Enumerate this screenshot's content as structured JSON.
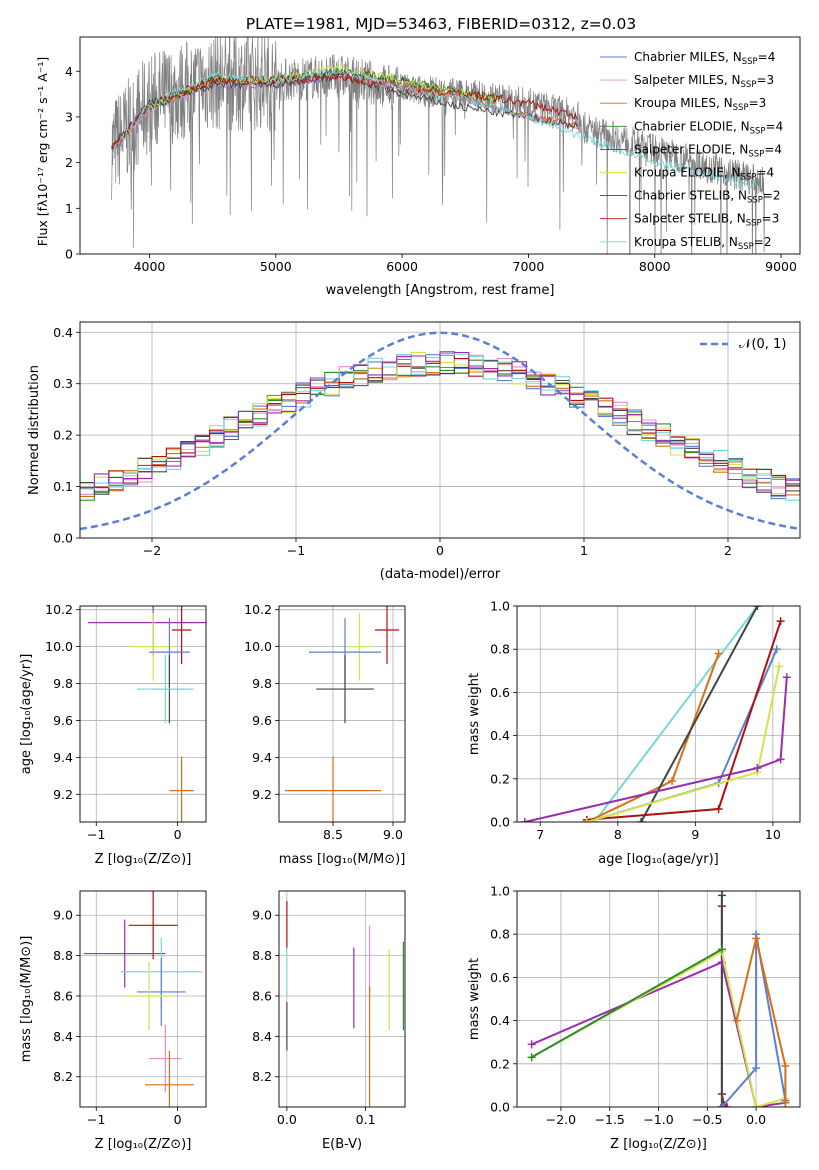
{
  "figure": {
    "title": "PLATE=1981, MJD=53463, FIBERID=0312, z=0.03"
  },
  "colors": {
    "Chabrier MILES": "#5b7fd6",
    "Salpeter MILES": "#e58ccc",
    "Kroupa MILES": "#d66f16",
    "Chabrier ELODIE": "#2e8b2e",
    "Salpeter ELODIE": "#444444",
    "Kroupa ELODIE": "#d2e54a",
    "Chabrier STELIB": "#444444",
    "Salpeter STELIB": "#b01010",
    "Kroupa STELIB": "#77d8d8",
    "observed": "#808080",
    "normal": "#5b7fd6",
    "purple": "#9a2db0"
  },
  "chart_data": [
    {
      "id": "spectrum",
      "type": "line",
      "title": "PLATE=1981, MJD=53463, FIBERID=0312, z=0.03",
      "xlabel": "wavelength [Angstrom, rest frame]",
      "ylabel": "Flux [f_λ 10^-17 erg cm^-2 s^-1 A^-1]",
      "xlim": [
        3450,
        9150
      ],
      "ylim": [
        0,
        4.75
      ],
      "xticks": [
        4000,
        5000,
        6000,
        7000,
        8000,
        9000
      ],
      "yticks": [
        0,
        1,
        2,
        3,
        4
      ],
      "grid": false,
      "legend_position": "top-right",
      "series": [
        {
          "name": "Chabrier MILES, N_SSP=4",
          "color": "#5b7fd6",
          "x": [
            3700,
            4000,
            4500,
            5000,
            5500,
            6000,
            6500,
            7000,
            7400
          ],
          "y": [
            2.3,
            3.2,
            3.7,
            3.7,
            3.9,
            3.7,
            3.4,
            3.0,
            2.8
          ]
        },
        {
          "name": "Salpeter MILES, N_SSP=3",
          "color": "#e58ccc",
          "x": [
            3700,
            4000,
            4500,
            5000,
            5500,
            6000,
            6500,
            7000,
            7400
          ],
          "y": [
            2.3,
            3.2,
            3.7,
            3.7,
            3.9,
            3.7,
            3.4,
            3.0,
            2.8
          ]
        },
        {
          "name": "Kroupa MILES, N_SSP=3",
          "color": "#d66f16",
          "x": [
            3700,
            4000,
            4500,
            5000,
            5500,
            6000,
            6500,
            7000,
            7400
          ],
          "y": [
            2.3,
            3.2,
            3.8,
            3.8,
            3.9,
            3.7,
            3.4,
            3.0,
            2.8
          ]
        },
        {
          "name": "Chabrier ELODIE, N_SSP=4",
          "color": "#2e8b2e",
          "x": [
            4000,
            4500,
            5000,
            5500,
            6000,
            6500,
            6800
          ],
          "y": [
            3.2,
            3.8,
            3.8,
            4.0,
            3.8,
            3.5,
            3.4
          ]
        },
        {
          "name": "Salpeter ELODIE, N_SSP=4",
          "color": "#444444",
          "x": [
            4000,
            4500,
            5000,
            5500,
            6000,
            6500,
            6800
          ],
          "y": [
            3.2,
            3.8,
            3.8,
            4.0,
            3.8,
            3.5,
            3.4
          ]
        },
        {
          "name": "Kroupa ELODIE, N_SSP=4",
          "color": "#d2e54a",
          "x": [
            4000,
            4500,
            5000,
            5500,
            6000,
            6500,
            6800
          ],
          "y": [
            3.2,
            3.8,
            3.8,
            4.1,
            3.8,
            3.5,
            3.4
          ]
        },
        {
          "name": "Chabrier STELIB, N_SSP=2",
          "color": "#444444",
          "x": [
            3700,
            4000,
            4500,
            5000,
            5500,
            6000,
            6500,
            7000,
            7400
          ],
          "y": [
            2.3,
            3.3,
            3.7,
            3.7,
            3.9,
            3.5,
            3.2,
            3.0,
            2.8
          ]
        },
        {
          "name": "Salpeter STELIB, N_SSP=3",
          "color": "#b01010",
          "x": [
            3700,
            4000,
            4500,
            5000,
            5500,
            6000,
            6500,
            7000,
            7400
          ],
          "y": [
            2.3,
            3.3,
            3.8,
            3.8,
            3.9,
            3.6,
            3.5,
            3.3,
            3.0
          ]
        },
        {
          "name": "Kroupa STELIB, N_SSP=2",
          "color": "#77d8d8",
          "x": [
            3700,
            4000,
            4500,
            5000,
            5500,
            6000,
            6500,
            7000,
            7500,
            8000,
            8500,
            8800
          ],
          "y": [
            2.2,
            3.3,
            3.9,
            3.8,
            4.0,
            3.6,
            3.4,
            3.0,
            2.5,
            2.0,
            1.7,
            1.5
          ]
        }
      ]
    },
    {
      "id": "residuals",
      "type": "line",
      "xlabel": "(data-model)/error",
      "ylabel": "Normed distribution",
      "xlim": [
        -2.5,
        2.5
      ],
      "ylim": [
        0,
        0.42
      ],
      "xticks": [
        -2,
        -1,
        0,
        1,
        2
      ],
      "yticks": [
        0.0,
        0.1,
        0.2,
        0.3,
        0.4
      ],
      "grid": true,
      "legend_position": "top-right",
      "legend": [
        "𝒩(0, 1)"
      ],
      "normal_curve": {
        "mean": 0,
        "sigma": 1
      }
    },
    {
      "id": "age_vs_Z",
      "type": "scatter",
      "xlabel": "Z [log10(Z/Z⊙)]",
      "ylabel": "age [log10(age/yr)]",
      "xlim": [
        -1.2,
        0.35
      ],
      "ylim": [
        9.05,
        10.22
      ],
      "xticks": [
        -1,
        0
      ],
      "yticks": [
        9.2,
        9.4,
        9.6,
        9.8,
        10.0,
        10.2
      ],
      "grid": true,
      "points": [
        {
          "color": "#9a2db0",
          "x": -0.3,
          "y": 10.13,
          "xerr": 0.8
        },
        {
          "color": "#b01010",
          "x": 0.05,
          "y": 10.09,
          "xerr": 0.12
        },
        {
          "color": "#d2e54a",
          "x": -0.3,
          "y": 10.0,
          "xerr": 0.25
        },
        {
          "color": "#5b7fd6",
          "x": -0.1,
          "y": 9.97,
          "xerr": 0.25
        },
        {
          "color": "#444444",
          "x": -0.1,
          "y": 9.77,
          "xerr": 0.2
        },
        {
          "color": "#77d8d8",
          "x": -0.15,
          "y": 9.77,
          "xerr": 0.35
        },
        {
          "color": "#d66f16",
          "x": 0.05,
          "y": 9.22,
          "xerr": 0.15
        }
      ]
    },
    {
      "id": "age_vs_mass",
      "type": "scatter",
      "xlabel": "mass [log10(M/M⊙)]",
      "xlim": [
        8.05,
        9.1
      ],
      "ylim": [
        9.05,
        10.22
      ],
      "xticks": [
        8.5,
        9.0
      ],
      "yticks": [
        9.2,
        9.4,
        9.6,
        9.8,
        10.0,
        10.2
      ],
      "grid": true,
      "points": [
        {
          "color": "#b01010",
          "x": 8.95,
          "y": 10.09,
          "xerr": 0.1
        },
        {
          "color": "#d2e54a",
          "x": 8.72,
          "y": 10.0,
          "xerr": 0.1
        },
        {
          "color": "#5b7fd6",
          "x": 8.6,
          "y": 9.97,
          "xerr": 0.3
        },
        {
          "color": "#444444",
          "x": 8.6,
          "y": 9.77,
          "xerr": 0.24
        },
        {
          "color": "#d66f16",
          "x": 8.5,
          "y": 9.22,
          "xerr": 0.4
        }
      ]
    },
    {
      "id": "massweight_vs_age",
      "type": "line",
      "xlabel": "age [log10(age/yr)]",
      "ylabel": "mass weight",
      "xlim": [
        6.7,
        10.35
      ],
      "ylim": [
        0,
        1.0
      ],
      "xticks": [
        7,
        8,
        9,
        10
      ],
      "yticks": [
        0.0,
        0.2,
        0.4,
        0.6,
        0.8,
        1.0
      ],
      "grid": true,
      "series": [
        {
          "color": "#77d8d8",
          "x": [
            7.7,
            9.8
          ],
          "y": [
            0.0,
            1.0
          ]
        },
        {
          "color": "#d66f16",
          "x": [
            7.6,
            8.7,
            9.3
          ],
          "y": [
            0.0,
            0.19,
            0.78
          ]
        },
        {
          "color": "#444444",
          "x": [
            8.3,
            9.8
          ],
          "y": [
            0.0,
            1.0
          ]
        },
        {
          "color": "#5b7fd6",
          "x": [
            7.6,
            9.3,
            10.05
          ],
          "y": [
            0.0,
            0.18,
            0.8
          ]
        },
        {
          "color": "#b01010",
          "x": [
            7.6,
            9.3,
            10.1
          ],
          "y": [
            0.01,
            0.06,
            0.93
          ]
        },
        {
          "color": "#d2e54a",
          "x": [
            7.6,
            9.8,
            10.08
          ],
          "y": [
            0.0,
            0.23,
            0.72
          ]
        },
        {
          "color": "#9a2db0",
          "x": [
            6.8,
            9.8,
            10.1,
            10.18
          ],
          "y": [
            0.0,
            0.25,
            0.29,
            0.67
          ]
        }
      ]
    },
    {
      "id": "mass_vs_Z",
      "type": "scatter",
      "xlabel": "Z [log10(Z/Z⊙)]",
      "ylabel": "mass [log10(M/M⊙)]",
      "xlim": [
        -1.2,
        0.35
      ],
      "ylim": [
        8.05,
        9.12
      ],
      "xticks": [
        -1,
        0
      ],
      "yticks": [
        8.2,
        8.4,
        8.6,
        8.8,
        9.0
      ],
      "grid": true,
      "points": [
        {
          "color": "#b01010",
          "x": -0.3,
          "y": 8.95,
          "xerr": 0.3
        },
        {
          "color": "#9a2db0",
          "x": -0.65,
          "y": 8.81,
          "xerr": 0.5
        },
        {
          "color": "#77d8d8",
          "x": -0.2,
          "y": 8.72,
          "xerr": 0.5
        },
        {
          "color": "#5b7fd6",
          "x": -0.2,
          "y": 8.62,
          "xerr": 0.3
        },
        {
          "color": "#d2e54a",
          "x": -0.35,
          "y": 8.6,
          "xerr": 0.3
        },
        {
          "color": "#e58ccc",
          "x": -0.15,
          "y": 8.29,
          "xerr": 0.2
        },
        {
          "color": "#d66f16",
          "x": -0.1,
          "y": 8.16,
          "xerr": 0.3
        }
      ]
    },
    {
      "id": "mass_vs_EBV",
      "type": "scatter",
      "xlabel": "E(B-V)",
      "xlim": [
        -0.01,
        0.15
      ],
      "ylim": [
        8.05,
        9.12
      ],
      "xticks": [
        0.0,
        0.1
      ],
      "yticks": [
        8.2,
        8.4,
        8.6,
        8.8,
        9.0
      ],
      "grid": true,
      "points": [
        {
          "color": "#b01010",
          "x": 0.0,
          "y": 8.95,
          "yerr": 0.12
        },
        {
          "color": "#77d8d8",
          "x": 0.0,
          "y": 8.72,
          "yerr": 0.12
        },
        {
          "color": "#444444",
          "x": 0.0,
          "y": 8.45,
          "yerr": 0.12
        },
        {
          "color": "#9a2db0",
          "x": 0.085,
          "y": 8.64,
          "yerr": 0.2
        },
        {
          "color": "#e58ccc",
          "x": 0.105,
          "y": 8.7,
          "yerr": 0.25
        },
        {
          "color": "#d66f16",
          "x": 0.105,
          "y": 8.35,
          "yerr": 0.3
        },
        {
          "color": "#d2e54a",
          "x": 0.13,
          "y": 8.63,
          "yerr": 0.2
        },
        {
          "color": "#2e8b2e",
          "x": 0.148,
          "y": 8.65,
          "yerr": 0.22
        }
      ]
    },
    {
      "id": "massweight_vs_Z",
      "type": "line",
      "xlabel": "Z [log10(Z/Z⊙)]",
      "ylabel": "mass weight",
      "xlim": [
        -2.45,
        0.45
      ],
      "ylim": [
        0,
        1.0
      ],
      "xticks": [
        -2.0,
        -1.5,
        -1.0,
        -0.5,
        0.0
      ],
      "yticks": [
        0.0,
        0.2,
        0.4,
        0.6,
        0.8,
        1.0
      ],
      "grid": true,
      "series": [
        {
          "color": "#b01010",
          "x": [
            -0.35,
            -0.35,
            -0.33,
            -0.3
          ],
          "y": [
            0.93,
            0.06,
            0.01,
            0.0
          ]
        },
        {
          "color": "#77d8d8",
          "x": [
            -0.35,
            -0.35
          ],
          "y": [
            1.0,
            0.0
          ]
        },
        {
          "color": "#444444",
          "x": [
            -0.35,
            -0.35
          ],
          "y": [
            0.98,
            0.0
          ]
        },
        {
          "color": "#9a2db0",
          "x": [
            -2.3,
            -0.35,
            0.0,
            0.3
          ],
          "y": [
            0.29,
            0.67,
            0.0,
            0.02
          ]
        },
        {
          "color": "#d2e54a",
          "x": [
            -2.3,
            -0.35,
            0.0,
            0.3
          ],
          "y": [
            0.23,
            0.72,
            0.0,
            0.04
          ]
        },
        {
          "color": "#2e8b2e",
          "x": [
            -2.3,
            -0.35
          ],
          "y": [
            0.23,
            0.73
          ]
        },
        {
          "color": "#5b7fd6",
          "x": [
            -0.35,
            0.0,
            0.0,
            0.3
          ],
          "y": [
            0.0,
            0.18,
            0.8,
            0.03
          ]
        },
        {
          "color": "#d66f16",
          "x": [
            -0.2,
            0.0,
            0.3,
            0.3
          ],
          "y": [
            0.4,
            0.78,
            0.19,
            0.02
          ]
        }
      ]
    }
  ],
  "legend": {
    "entries": [
      {
        "label": "Chabrier MILES, N",
        "sub": "SSP",
        "tail": "=4",
        "color": "#5b7fd6"
      },
      {
        "label": "Salpeter MILES, N",
        "sub": "SSP",
        "tail": "=3",
        "color": "#e58ccc"
      },
      {
        "label": "Kroupa MILES, N",
        "sub": "SSP",
        "tail": "=3",
        "color": "#d66f16"
      },
      {
        "label": "Chabrier ELODIE, N",
        "sub": "SSP",
        "tail": "=4",
        "color": "#2e8b2e"
      },
      {
        "label": "Salpeter ELODIE, N",
        "sub": "SSP",
        "tail": "=4",
        "color": "#444444"
      },
      {
        "label": "Kroupa ELODIE, N",
        "sub": "SSP",
        "tail": "=4",
        "color": "#d2e54a"
      },
      {
        "label": "Chabrier STELIB, N",
        "sub": "SSP",
        "tail": "=2",
        "color": "#444444"
      },
      {
        "label": "Salpeter STELIB, N",
        "sub": "SSP",
        "tail": "=3",
        "color": "#b01010"
      },
      {
        "label": "Kroupa STELIB, N",
        "sub": "SSP",
        "tail": "=2",
        "color": "#77d8d8"
      }
    ]
  }
}
